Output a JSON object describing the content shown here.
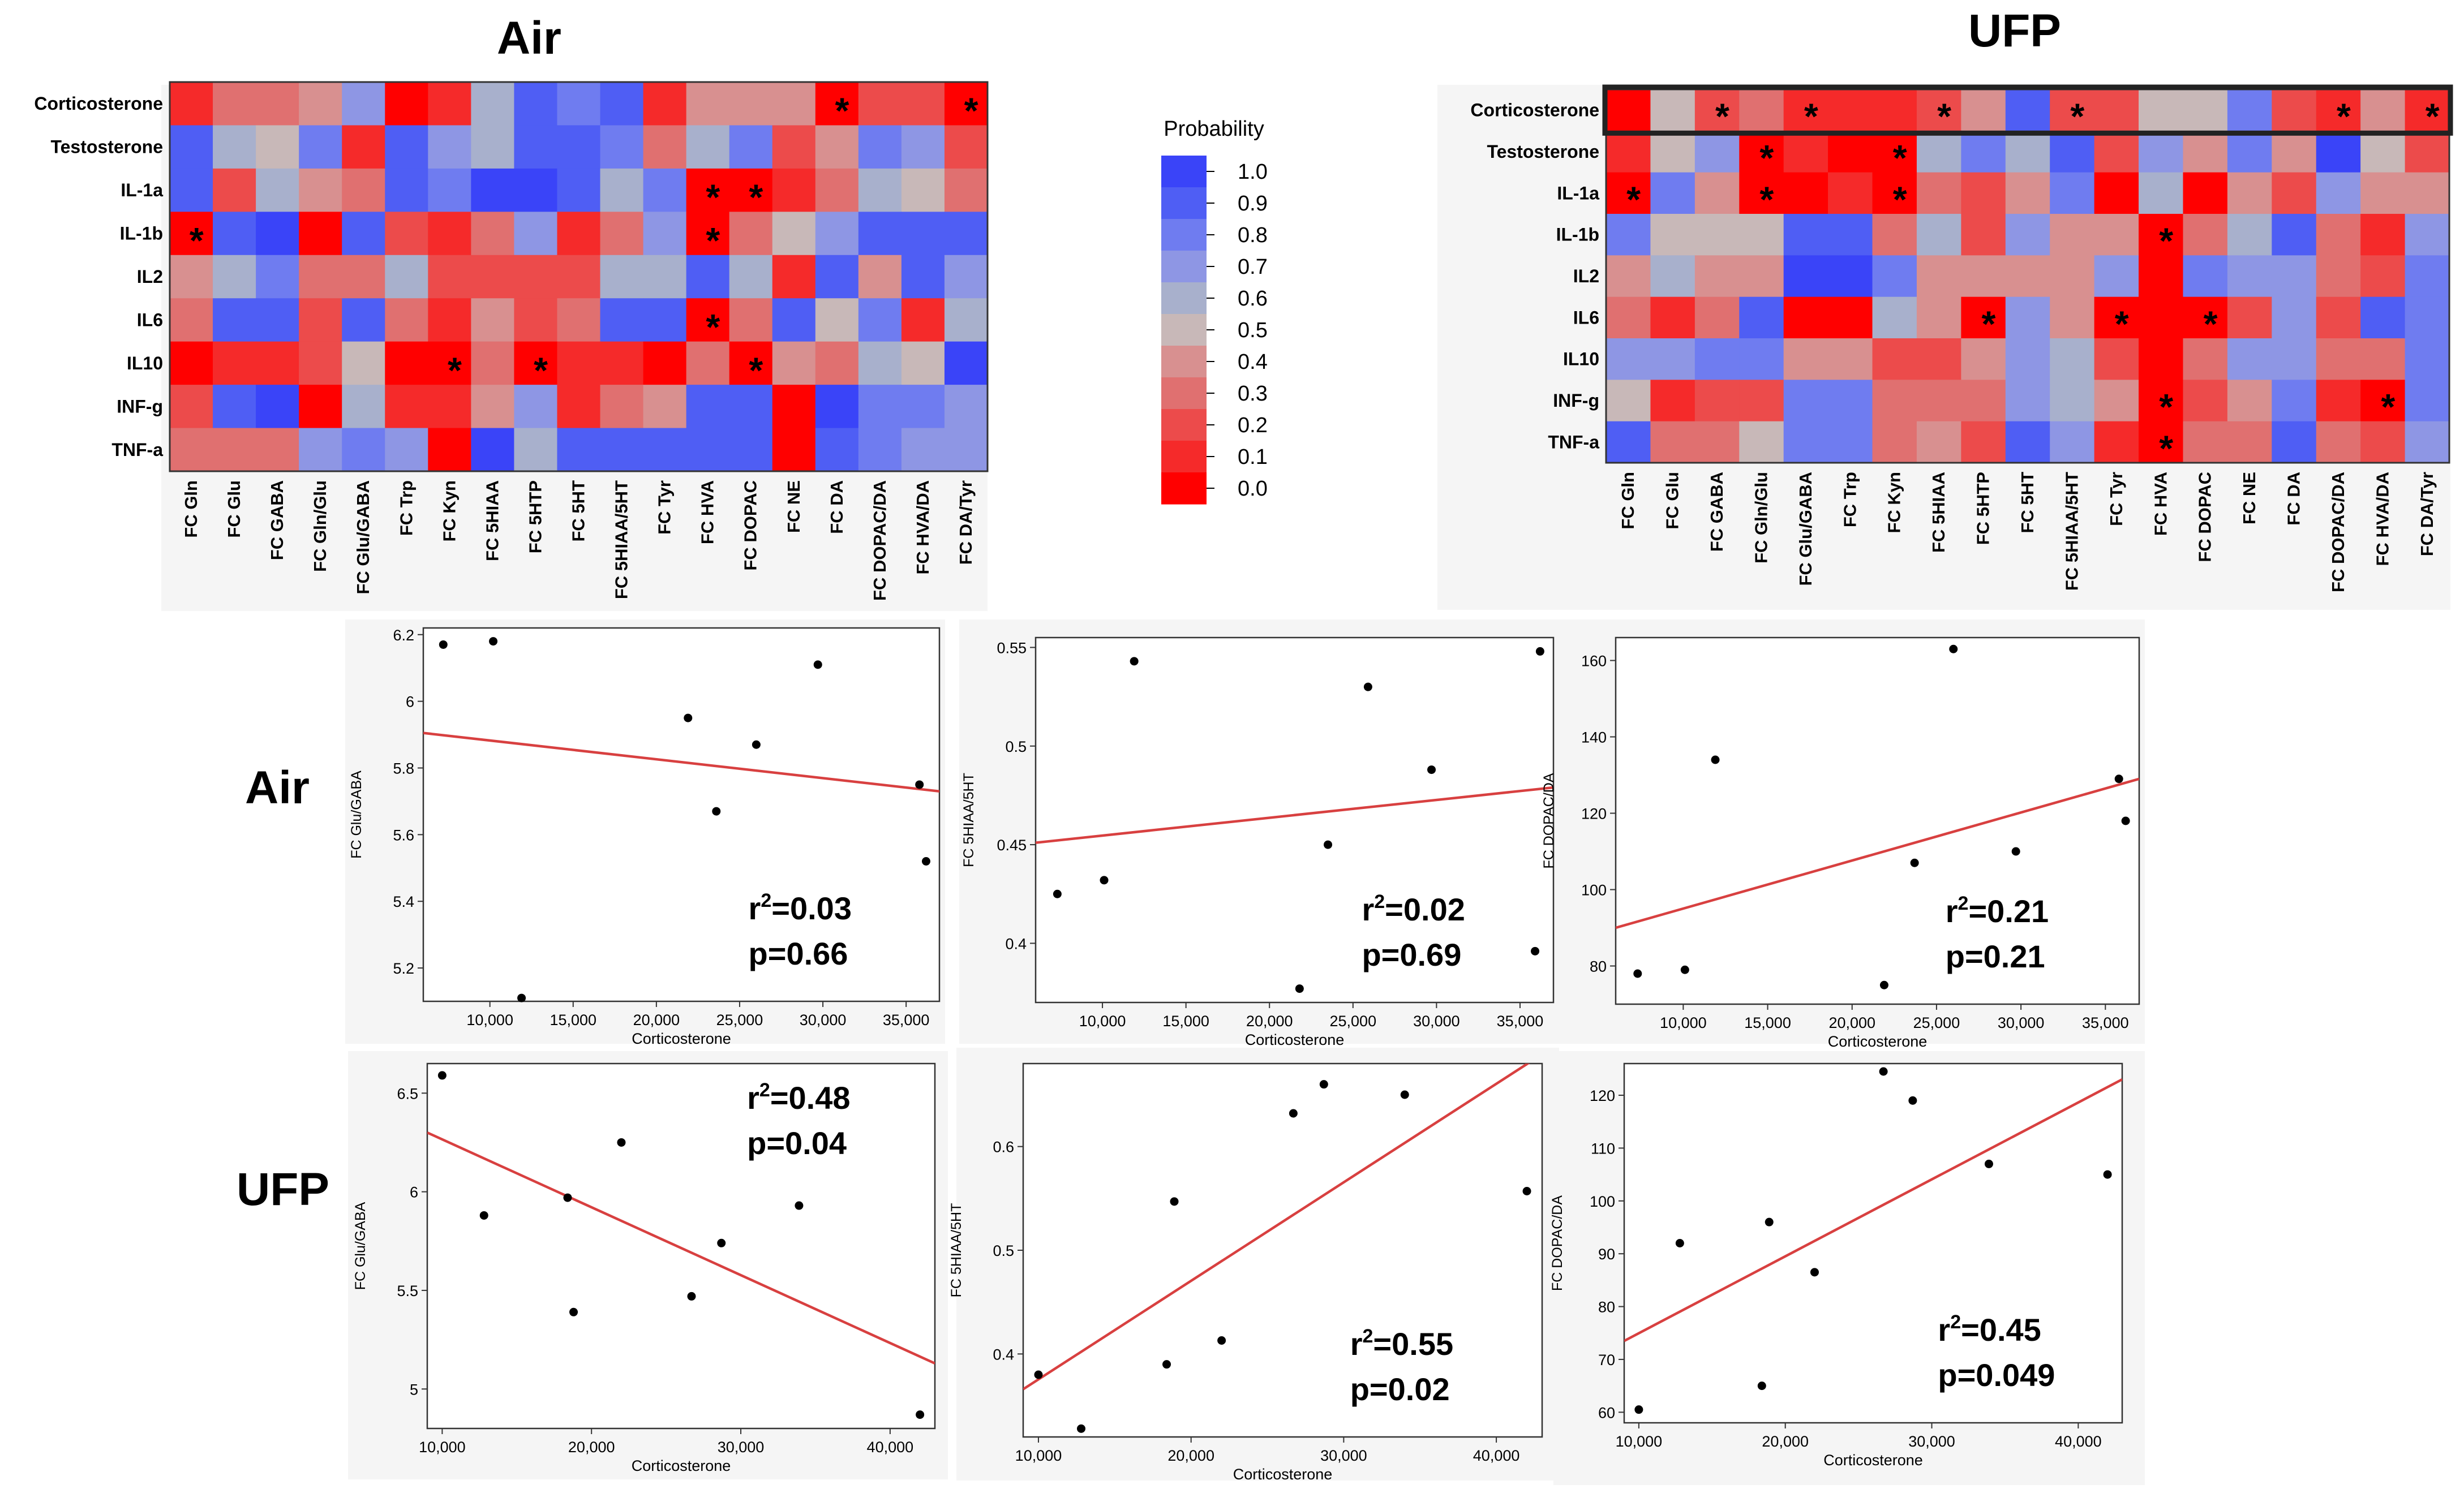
{
  "figure": {
    "big_labels": {
      "air_top": "Air",
      "ufp_top": "UFP",
      "air_row": "Air",
      "ufp_row": "UFP"
    }
  },
  "legend": {
    "title": "Probability",
    "ticks": [
      "1.0",
      "0.9",
      "0.8",
      "0.7",
      "0.6",
      "0.5",
      "0.4",
      "0.3",
      "0.2",
      "0.1",
      "0.0"
    ]
  },
  "colors": {
    "palette": [
      "#ff0000",
      "#f52a2a",
      "#ec4b4b",
      "#e07070",
      "#d89090",
      "#c8b8b8",
      "#a8b0cc",
      "#8e96e4",
      "#6f7cf0",
      "#4f5ef4",
      "#3a44f8"
    ],
    "fit_line": "#d84040",
    "point": "#000000",
    "panel_bg": "#f5f5f5",
    "highlight_border": "#222222"
  },
  "chart_data": [
    {
      "id": "heatmap_air",
      "type": "heatmap",
      "title": "Air",
      "legend_title": "Probability",
      "rows": [
        "Corticosterone",
        "Testosterone",
        "IL-1a",
        "IL-1b",
        "IL2",
        "IL6",
        "IL10",
        "INF-g",
        "TNF-a"
      ],
      "columns": [
        "FC Gln",
        "FC Glu",
        "FC GABA",
        "FC Gln/Glu",
        "FC Glu/GABA",
        "FC Trp",
        "FC Kyn",
        "FC 5HIAA",
        "FC 5HTP",
        "FC 5HT",
        "FC 5HIAA/5HT",
        "FC Tyr",
        "FC HVA",
        "FC DOPAC",
        "FC NE",
        "FC DA",
        "FC DOPAC/DA",
        "FC HVA/DA",
        "FC DA/Tyr"
      ],
      "values": [
        [
          0.05,
          0.25,
          0.25,
          0.35,
          0.65,
          0.02,
          0.12,
          0.55,
          0.9,
          0.75,
          0.85,
          0.12,
          0.35,
          0.4,
          0.4,
          0.02,
          0.22,
          0.22,
          0.02
        ],
        [
          0.85,
          0.55,
          0.45,
          0.75,
          0.1,
          0.85,
          0.65,
          0.55,
          0.9,
          0.85,
          0.75,
          0.3,
          0.6,
          0.75,
          0.2,
          0.4,
          0.75,
          0.7,
          0.2
        ],
        [
          0.9,
          0.2,
          0.55,
          0.4,
          0.3,
          0.85,
          0.8,
          0.95,
          0.95,
          0.85,
          0.55,
          0.8,
          0.02,
          0.02,
          0.1,
          0.3,
          0.6,
          0.5,
          0.3
        ],
        [
          0.02,
          0.85,
          0.95,
          0.02,
          0.85,
          0.2,
          0.1,
          0.25,
          0.65,
          0.1,
          0.3,
          0.65,
          0.02,
          0.25,
          0.45,
          0.7,
          0.85,
          0.85,
          0.85
        ],
        [
          0.35,
          0.55,
          0.75,
          0.3,
          0.3,
          0.55,
          0.2,
          0.2,
          0.2,
          0.2,
          0.6,
          0.6,
          0.9,
          0.55,
          0.05,
          0.9,
          0.4,
          0.85,
          0.7
        ],
        [
          0.25,
          0.85,
          0.85,
          0.15,
          0.85,
          0.25,
          0.12,
          0.4,
          0.2,
          0.3,
          0.85,
          0.85,
          0.02,
          0.3,
          0.9,
          0.5,
          0.75,
          0.1,
          0.6
        ],
        [
          0.02,
          0.12,
          0.12,
          0.15,
          0.45,
          0.02,
          0.02,
          0.25,
          0.02,
          0.1,
          0.1,
          0.02,
          0.25,
          0.02,
          0.4,
          0.3,
          0.6,
          0.45,
          0.95
        ],
        [
          0.15,
          0.85,
          0.95,
          0.02,
          0.6,
          0.1,
          0.1,
          0.4,
          0.7,
          0.1,
          0.25,
          0.4,
          0.85,
          0.85,
          0.02,
          0.95,
          0.75,
          0.8,
          0.65
        ],
        [
          0.3,
          0.3,
          0.3,
          0.65,
          0.75,
          0.65,
          0.02,
          0.95,
          0.6,
          0.85,
          0.85,
          0.85,
          0.85,
          0.85,
          0.02,
          0.9,
          0.75,
          0.65,
          0.65
        ]
      ],
      "significant": [
        [
          0,
          15
        ],
        [
          0,
          18
        ],
        [
          2,
          12
        ],
        [
          2,
          13
        ],
        [
          3,
          0
        ],
        [
          3,
          12
        ],
        [
          5,
          12
        ],
        [
          6,
          6
        ],
        [
          6,
          8
        ],
        [
          6,
          13
        ]
      ],
      "colorbar_range": [
        0.0,
        1.0
      ]
    },
    {
      "id": "heatmap_ufp",
      "type": "heatmap",
      "title": "UFP",
      "legend_title": "Probability",
      "rows": [
        "Corticosterone",
        "Testosterone",
        "IL-1a",
        "IL-1b",
        "IL2",
        "IL6",
        "IL10",
        "INF-g",
        "TNF-a"
      ],
      "columns": [
        "FC Gln",
        "FC Glu",
        "FC GABA",
        "FC Gln/Glu",
        "FC Glu/GABA",
        "FC Trp",
        "FC Kyn",
        "FC 5HIAA",
        "FC 5HTP",
        "FC 5HT",
        "FC 5HIAA/5HT",
        "FC Tyr",
        "FC HVA",
        "FC DOPAC",
        "FC NE",
        "FC DA",
        "FC DOPAC/DA",
        "FC HVA/DA",
        "FC DA/Tyr"
      ],
      "values": [
        [
          0.02,
          0.45,
          0.15,
          0.3,
          0.1,
          0.1,
          0.1,
          0.15,
          0.35,
          0.9,
          0.15,
          0.15,
          0.45,
          0.45,
          0.75,
          0.15,
          0.1,
          0.35,
          0.1
        ],
        [
          0.05,
          0.45,
          0.65,
          0.02,
          0.1,
          0.02,
          0.02,
          0.55,
          0.75,
          0.6,
          0.85,
          0.2,
          0.65,
          0.35,
          0.75,
          0.4,
          0.95,
          0.45,
          0.15
        ],
        [
          0.02,
          0.75,
          0.35,
          0.02,
          0.02,
          0.1,
          0.02,
          0.25,
          0.15,
          0.35,
          0.75,
          0.02,
          0.55,
          0.02,
          0.35,
          0.2,
          0.65,
          0.4,
          0.35
        ],
        [
          0.75,
          0.45,
          0.45,
          0.45,
          0.9,
          0.9,
          0.25,
          0.6,
          0.2,
          0.65,
          0.35,
          0.35,
          0.02,
          0.3,
          0.6,
          0.85,
          0.25,
          0.1,
          0.7
        ],
        [
          0.4,
          0.6,
          0.4,
          0.4,
          0.95,
          0.95,
          0.75,
          0.35,
          0.35,
          0.35,
          0.35,
          0.65,
          0.02,
          0.75,
          0.7,
          0.65,
          0.25,
          0.15,
          0.75
        ],
        [
          0.25,
          0.1,
          0.25,
          0.85,
          0.02,
          0.02,
          0.6,
          0.35,
          0.02,
          0.7,
          0.4,
          0.02,
          0.02,
          0.02,
          0.2,
          0.65,
          0.2,
          0.85,
          0.75
        ],
        [
          0.65,
          0.7,
          0.75,
          0.75,
          0.35,
          0.35,
          0.2,
          0.2,
          0.35,
          0.65,
          0.6,
          0.2,
          0.02,
          0.3,
          0.65,
          0.65,
          0.3,
          0.3,
          0.8
        ],
        [
          0.45,
          0.1,
          0.2,
          0.2,
          0.8,
          0.8,
          0.25,
          0.25,
          0.25,
          0.7,
          0.6,
          0.35,
          0.02,
          0.2,
          0.4,
          0.8,
          0.05,
          0.02,
          0.75
        ],
        [
          0.9,
          0.25,
          0.25,
          0.45,
          0.75,
          0.75,
          0.3,
          0.4,
          0.2,
          0.9,
          0.7,
          0.1,
          0.02,
          0.25,
          0.3,
          0.9,
          0.25,
          0.15,
          0.65
        ]
      ],
      "significant": [
        [
          0,
          2
        ],
        [
          0,
          4
        ],
        [
          0,
          7
        ],
        [
          0,
          10
        ],
        [
          0,
          16
        ],
        [
          0,
          18
        ],
        [
          1,
          3
        ],
        [
          1,
          6
        ],
        [
          2,
          0
        ],
        [
          2,
          3
        ],
        [
          2,
          6
        ],
        [
          3,
          12
        ],
        [
          5,
          8
        ],
        [
          5,
          11
        ],
        [
          5,
          13
        ],
        [
          7,
          12
        ],
        [
          7,
          17
        ],
        [
          8,
          12
        ]
      ],
      "highlight_row": "Corticosterone",
      "colorbar_range": [
        0.0,
        1.0
      ]
    },
    {
      "id": "scatter_air_glu_gaba",
      "type": "scatter",
      "group": "Air",
      "xlabel": "Corticosterone",
      "ylabel": "FC Glu/GABA",
      "xlim": [
        6000,
        37000
      ],
      "ylim": [
        5.1,
        6.22
      ],
      "xticks": [
        10000,
        15000,
        20000,
        25000,
        30000,
        35000
      ],
      "xtick_labels": [
        "10,000",
        "15,000",
        "20,000",
        "25,000",
        "30,000",
        "35,000"
      ],
      "yticks": [
        5.2,
        5.4,
        5.6,
        5.8,
        6.0,
        6.2
      ],
      "ytick_labels": [
        "5.2",
        "5.4",
        "5.6",
        "5.8",
        "6",
        "6.2"
      ],
      "points": [
        [
          7200,
          6.17
        ],
        [
          10200,
          6.18
        ],
        [
          11900,
          5.11
        ],
        [
          21900,
          5.95
        ],
        [
          23600,
          5.67
        ],
        [
          26000,
          5.87
        ],
        [
          29700,
          6.11
        ],
        [
          35800,
          5.75
        ],
        [
          36200,
          5.52
        ]
      ],
      "fit_line": [
        [
          6000,
          5.905
        ],
        [
          37000,
          5.73
        ]
      ],
      "r2_label": "r",
      "r2_value": "=0.03",
      "p_label": "p=0.66",
      "stats_position": "bottom-right"
    },
    {
      "id": "scatter_air_5hiaa_5ht",
      "type": "scatter",
      "group": "Air",
      "xlabel": "Corticosterone",
      "ylabel": "FC 5HIAA/5HT",
      "xlim": [
        6000,
        37000
      ],
      "ylim": [
        0.37,
        0.555
      ],
      "xticks": [
        10000,
        15000,
        20000,
        25000,
        30000,
        35000
      ],
      "xtick_labels": [
        "10,000",
        "15,000",
        "20,000",
        "25,000",
        "30,000",
        "35,000"
      ],
      "yticks": [
        0.4,
        0.45,
        0.5,
        0.55
      ],
      "ytick_labels": [
        "0.4",
        "0.45",
        "0.5",
        "0.55"
      ],
      "points": [
        [
          7300,
          0.425
        ],
        [
          10100,
          0.432
        ],
        [
          11900,
          0.543
        ],
        [
          21800,
          0.377
        ],
        [
          23500,
          0.45
        ],
        [
          25900,
          0.53
        ],
        [
          29700,
          0.488
        ],
        [
          35900,
          0.396
        ],
        [
          36200,
          0.548
        ]
      ],
      "fit_line": [
        [
          6000,
          0.451
        ],
        [
          37000,
          0.479
        ]
      ],
      "r2_label": "r",
      "r2_value": "=0.02",
      "p_label": "p=0.69",
      "stats_position": "bottom-right"
    },
    {
      "id": "scatter_air_dopac_da",
      "type": "scatter",
      "group": "Air",
      "xlabel": "Corticosterone",
      "ylabel": "FC DOPAC/DA",
      "xlim": [
        6000,
        37000
      ],
      "ylim": [
        70,
        166
      ],
      "xticks": [
        10000,
        15000,
        20000,
        25000,
        30000,
        35000
      ],
      "xtick_labels": [
        "10,000",
        "15,000",
        "20,000",
        "25,000",
        "30,000",
        "35,000"
      ],
      "yticks": [
        80,
        100,
        120,
        140,
        160
      ],
      "ytick_labels": [
        "80",
        "100",
        "120",
        "140",
        "160"
      ],
      "points": [
        [
          7300,
          78
        ],
        [
          10100,
          79
        ],
        [
          11900,
          134
        ],
        [
          21900,
          75
        ],
        [
          23700,
          107
        ],
        [
          26000,
          163
        ],
        [
          29700,
          110
        ],
        [
          35800,
          129
        ],
        [
          36200,
          118
        ]
      ],
      "fit_line": [
        [
          6000,
          90
        ],
        [
          37000,
          129
        ]
      ],
      "r2_label": "r",
      "r2_value": "=0.21",
      "p_label": "p=0.21",
      "stats_position": "bottom-right"
    },
    {
      "id": "scatter_ufp_glu_gaba",
      "type": "scatter",
      "group": "UFP",
      "xlabel": "Corticosterone",
      "ylabel": "FC Glu/GABA",
      "xlim": [
        9000,
        43000
      ],
      "ylim": [
        4.8,
        6.65
      ],
      "xticks": [
        10000,
        20000,
        30000,
        40000
      ],
      "xtick_labels": [
        "10,000",
        "20,000",
        "30,000",
        "40,000"
      ],
      "yticks": [
        5.0,
        5.5,
        6.0,
        6.5
      ],
      "ytick_labels": [
        "5",
        "5.5",
        "6",
        "6.5"
      ],
      "points": [
        [
          10000,
          6.59
        ],
        [
          12800,
          5.88
        ],
        [
          18400,
          5.97
        ],
        [
          18800,
          5.39
        ],
        [
          22000,
          6.25
        ],
        [
          26700,
          5.47
        ],
        [
          28700,
          5.74
        ],
        [
          33900,
          5.93
        ],
        [
          42000,
          4.87
        ]
      ],
      "fit_line": [
        [
          9000,
          6.3
        ],
        [
          43000,
          5.13
        ]
      ],
      "r2_label": "r",
      "r2_value": "=0.48",
      "p_label": "p=0.04",
      "stats_position": "top-right"
    },
    {
      "id": "scatter_ufp_5hiaa_5ht",
      "type": "scatter",
      "group": "UFP",
      "xlabel": "Corticosterone",
      "ylabel": "FC 5HIAA/5HT",
      "xlim": [
        9000,
        43000
      ],
      "ylim": [
        0.32,
        0.68
      ],
      "xticks": [
        10000,
        20000,
        30000,
        40000
      ],
      "xtick_labels": [
        "10,000",
        "20,000",
        "30,000",
        "40,000"
      ],
      "yticks": [
        0.4,
        0.5,
        0.6
      ],
      "ytick_labels": [
        "0.4",
        "0.5",
        "0.6"
      ],
      "points": [
        [
          10000,
          0.38
        ],
        [
          12800,
          0.328
        ],
        [
          18400,
          0.39
        ],
        [
          18900,
          0.547
        ],
        [
          22000,
          0.413
        ],
        [
          26700,
          0.632
        ],
        [
          28700,
          0.66
        ],
        [
          34000,
          0.65
        ],
        [
          42000,
          0.557
        ]
      ],
      "fit_line": [
        [
          9000,
          0.366
        ],
        [
          43000,
          0.689
        ]
      ],
      "r2_label": "r",
      "r2_value": "=0.55",
      "p_label": "p=0.02",
      "stats_position": "bottom-right"
    },
    {
      "id": "scatter_ufp_dopac_da",
      "type": "scatter",
      "group": "UFP",
      "xlabel": "Corticosterone",
      "ylabel": "FC DOPAC/DA",
      "xlim": [
        9000,
        43000
      ],
      "ylim": [
        58,
        126
      ],
      "xticks": [
        10000,
        20000,
        30000,
        40000
      ],
      "xtick_labels": [
        "10,000",
        "20,000",
        "30,000",
        "40,000"
      ],
      "yticks": [
        60,
        70,
        80,
        90,
        100,
        110,
        120
      ],
      "ytick_labels": [
        "60",
        "70",
        "80",
        "90",
        "100",
        "110",
        "120"
      ],
      "points": [
        [
          10000,
          60.5
        ],
        [
          12800,
          92
        ],
        [
          18400,
          65
        ],
        [
          18900,
          96
        ],
        [
          22000,
          86.5
        ],
        [
          26700,
          124.5
        ],
        [
          28700,
          119
        ],
        [
          33900,
          107
        ],
        [
          42000,
          105
        ]
      ],
      "fit_line": [
        [
          9000,
          73.5
        ],
        [
          43000,
          123
        ]
      ],
      "r2_label": "r",
      "r2_value": "=0.45",
      "p_label": "p=0.049",
      "stats_position": "bottom-right"
    }
  ]
}
